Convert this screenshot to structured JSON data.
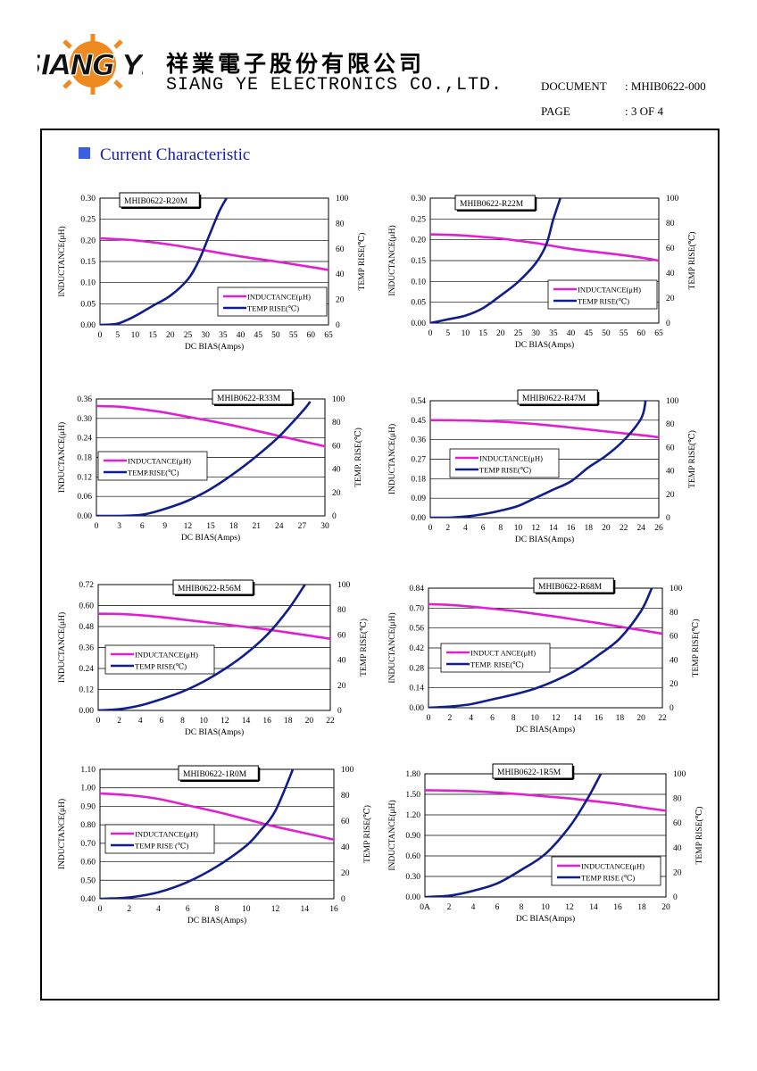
{
  "header": {
    "company_cn": "祥業電子股份有限公司",
    "company_en": "SIANG YE ELECTRONICS CO.,LTD.",
    "logo_text": "SIANG YE",
    "document_label": "DOCUMENT",
    "document_value": ": MHIB0622-000",
    "page_label": "PAGE",
    "page_value": ": 3 OF 4"
  },
  "section": {
    "title": "Current Characteristic"
  },
  "colors": {
    "inductance": "#e020d0",
    "temp": "#0f1e8c",
    "accent": "#3a5fe0"
  },
  "chart_data": [
    {
      "type": "line",
      "title": "MHIB0622-R20M",
      "xlabel": "DC BIAS(Amps)",
      "ylabel": "INDUCTANCE(μH)",
      "y2label": "TEMP RISE(℃)",
      "xlim": [
        0,
        65
      ],
      "ylim": [
        0,
        0.3
      ],
      "y2lim": [
        0,
        100
      ],
      "x_ticks": [
        "0",
        "5",
        "10",
        "15",
        "20",
        "25",
        "30",
        "35",
        "40",
        "45",
        "50",
        "55",
        "60",
        "65"
      ],
      "y_ticks": [
        "0.00",
        "0.05",
        "0.10",
        "0.15",
        "0.20",
        "0.25",
        "0.30"
      ],
      "y2_ticks": [
        "0",
        "20",
        "40",
        "60",
        "80",
        "100"
      ],
      "legend": [
        "INDUCTANCE(μH)",
        "TEMP RISE(℃)"
      ],
      "legend_position": "bottom-right",
      "series": [
        {
          "name": "INDUCTANCE(μH)",
          "axis": "left",
          "x": [
            0,
            10,
            20,
            30,
            40,
            50,
            60,
            65
          ],
          "y": [
            0.205,
            0.2,
            0.19,
            0.176,
            0.162,
            0.15,
            0.137,
            0.13
          ]
        },
        {
          "name": "TEMP RISE(℃)",
          "axis": "right",
          "x": [
            0,
            5,
            10,
            15,
            20,
            25,
            28,
            31,
            34,
            36
          ],
          "y": [
            0,
            1,
            7,
            15,
            23,
            36,
            50,
            70,
            90,
            100
          ]
        }
      ]
    },
    {
      "type": "line",
      "title": "MHIB0622-R22M",
      "xlabel": "DC BIAS(Amps)",
      "ylabel": "INDUCTANCE(μH)",
      "y2label": "TEMP RISE(℃)",
      "xlim": [
        0,
        65
      ],
      "ylim": [
        0,
        0.3
      ],
      "y2lim": [
        0,
        100
      ],
      "x_ticks": [
        "0",
        "5",
        "10",
        "15",
        "20",
        "25",
        "30",
        "35",
        "40",
        "45",
        "50",
        "55",
        "60",
        "65"
      ],
      "y_ticks": [
        "0.00",
        "0.05",
        "0.10",
        "0.15",
        "0.20",
        "0.25",
        "0.30"
      ],
      "y2_ticks": [
        "0",
        "20",
        "40",
        "60",
        "80",
        "100"
      ],
      "legend": [
        "INDUCTANCE(μH)",
        "TEMP RISE(℃)"
      ],
      "legend_position": "bottom-right",
      "series": [
        {
          "name": "INDUCTANCE(μH)",
          "axis": "left",
          "x": [
            0,
            5,
            10,
            20,
            30,
            40,
            50,
            60,
            65
          ],
          "y": [
            0.213,
            0.212,
            0.21,
            0.203,
            0.192,
            0.178,
            0.168,
            0.157,
            0.15
          ]
        },
        {
          "name": "TEMP RISE(℃)",
          "axis": "right",
          "x": [
            0,
            5,
            10,
            15,
            20,
            25,
            30,
            33,
            35,
            37
          ],
          "y": [
            0,
            3,
            6,
            12,
            22,
            33,
            48,
            63,
            83,
            100
          ]
        }
      ]
    },
    {
      "type": "line",
      "title": "MHIB0622-R33M",
      "xlabel": "DC BIAS(Amps)",
      "ylabel": "INDUCTANCE(μH)",
      "y2label": "TEMP. RISE(℃)",
      "xlim": [
        0,
        30
      ],
      "ylim": [
        0,
        0.36
      ],
      "y2lim": [
        0,
        100
      ],
      "x_ticks": [
        "0",
        "3",
        "6",
        "9",
        "12",
        "15",
        "18",
        "21",
        "24",
        "27",
        "30"
      ],
      "y_ticks": [
        "0.00",
        "0.06",
        "0.12",
        "0.18",
        "0.24",
        "0.30",
        "0.36"
      ],
      "y2_ticks": [
        "0",
        "20",
        "40",
        "60",
        "80",
        "100"
      ],
      "legend": [
        "INDUCTANCE(μH)",
        "TEMP.RISE(℃)"
      ],
      "legend_position": "middle-left",
      "series": [
        {
          "name": "INDUCTANCE(μH)",
          "axis": "left",
          "x": [
            0,
            3,
            6,
            9,
            12,
            15,
            18,
            21,
            24,
            27,
            30
          ],
          "y": [
            0.338,
            0.336,
            0.328,
            0.318,
            0.305,
            0.292,
            0.278,
            0.262,
            0.246,
            0.23,
            0.214
          ]
        },
        {
          "name": "TEMP.RISE(℃)",
          "axis": "right",
          "x": [
            0,
            3,
            6,
            9,
            12,
            15,
            18,
            21,
            24,
            27,
            28
          ],
          "y": [
            0,
            0,
            1,
            6,
            13,
            23,
            36,
            51,
            68,
            89,
            97
          ]
        }
      ]
    },
    {
      "type": "line",
      "title": "MHIB0622-R47M",
      "xlabel": "DC BIAS(Amps)",
      "ylabel": "INDUCTANCE(μH)",
      "y2label": "TEMP RISE(℃)",
      "xlim": [
        0,
        26
      ],
      "ylim": [
        0,
        0.54
      ],
      "y2lim": [
        0,
        100
      ],
      "x_ticks": [
        "0",
        "2",
        "4",
        "6",
        "8",
        "10",
        "12",
        "14",
        "16",
        "18",
        "20",
        "22",
        "24",
        "26"
      ],
      "y_ticks": [
        "0.00",
        "0.09",
        "0.18",
        "0.27",
        "0.36",
        "0.45",
        "0.54"
      ],
      "y2_ticks": [
        "0",
        "20",
        "40",
        "60",
        "80",
        "100"
      ],
      "legend": [
        "INDUCTANCE(μH)",
        "TEMP RISE(℃)"
      ],
      "legend_position": "middle-left",
      "series": [
        {
          "name": "INDUCTANCE(μH)",
          "axis": "left",
          "x": [
            0,
            4,
            8,
            12,
            16,
            20,
            24,
            26
          ],
          "y": [
            0.45,
            0.449,
            0.443,
            0.432,
            0.416,
            0.398,
            0.381,
            0.371
          ]
        },
        {
          "name": "TEMP RISE(℃)",
          "axis": "right",
          "x": [
            0,
            2,
            4,
            6,
            8,
            10,
            12,
            14,
            16,
            18,
            20,
            22,
            24,
            24.5
          ],
          "y": [
            0,
            0,
            1,
            3,
            6,
            10,
            17,
            24,
            31,
            43,
            53,
            66,
            85,
            100
          ]
        }
      ]
    },
    {
      "type": "line",
      "title": "MHIB0622-R56M",
      "xlabel": "DC BIAS(Amps)",
      "ylabel": "INDUCTANCE(μH)",
      "y2label": "TEMP RISE(℃)",
      "xlim": [
        0,
        22
      ],
      "ylim": [
        0,
        0.72
      ],
      "y2lim": [
        0,
        100
      ],
      "x_ticks": [
        "0",
        "2",
        "4",
        "6",
        "8",
        "10",
        "12",
        "14",
        "16",
        "18",
        "20",
        "22"
      ],
      "y_ticks": [
        "0.00",
        "0.12",
        "0.24",
        "0.36",
        "0.48",
        "0.60",
        "0.72"
      ],
      "y2_ticks": [
        "0",
        "20",
        "40",
        "60",
        "80",
        "100"
      ],
      "legend": [
        "INDUCTANCE(μH)",
        "TEMP RISE(℃)"
      ],
      "legend_position": "middle-left",
      "series": [
        {
          "name": "INDUCTANCE(μH)",
          "axis": "left",
          "x": [
            0,
            2,
            4,
            6,
            8,
            10,
            12,
            14,
            16,
            18,
            20,
            22
          ],
          "y": [
            0.553,
            0.552,
            0.545,
            0.534,
            0.52,
            0.506,
            0.492,
            0.478,
            0.463,
            0.446,
            0.428,
            0.41
          ]
        },
        {
          "name": "TEMP RISE(℃)",
          "axis": "right",
          "x": [
            0,
            2,
            4,
            6,
            8,
            10,
            12,
            14,
            16,
            18,
            19.6
          ],
          "y": [
            0,
            1,
            4,
            9,
            15,
            23,
            33,
            45,
            60,
            80,
            100
          ]
        }
      ]
    },
    {
      "type": "line",
      "title": "MHIB0622-R68M",
      "xlabel": "DC BIAS(Amps)",
      "ylabel": "INDUCTANCE(μH)",
      "y2label": "TEMP RISE(℃)",
      "xlim": [
        0,
        22
      ],
      "ylim": [
        0,
        0.84
      ],
      "y2lim": [
        0,
        100
      ],
      "x_ticks": [
        "0",
        "2",
        "4",
        "6",
        "8",
        "10",
        "12",
        "14",
        "16",
        "18",
        "20",
        "22"
      ],
      "y_ticks": [
        "0.00",
        "0.14",
        "0.28",
        "0.42",
        "0.56",
        "0.70",
        "0.84"
      ],
      "y2_ticks": [
        "0",
        "20",
        "40",
        "60",
        "80",
        "100"
      ],
      "legend": [
        "INDUCT ANCE(μH)",
        "TEMP. RISE(℃)"
      ],
      "legend_position": "middle-left",
      "series": [
        {
          "name": "INDUCT ANCE(μH)",
          "axis": "left",
          "x": [
            0,
            2,
            4,
            6,
            8,
            10,
            12,
            14,
            16,
            18,
            20,
            22
          ],
          "y": [
            0.728,
            0.722,
            0.71,
            0.696,
            0.68,
            0.66,
            0.64,
            0.617,
            0.594,
            0.569,
            0.545,
            0.52
          ]
        },
        {
          "name": "TEMP. RISE(℃)",
          "axis": "right",
          "x": [
            0,
            2,
            4,
            6,
            8,
            10,
            12,
            14,
            16,
            18,
            20,
            21
          ],
          "y": [
            0,
            1,
            3,
            7,
            11,
            16,
            23,
            32,
            44,
            58,
            81,
            100
          ]
        }
      ]
    },
    {
      "type": "line",
      "title": "MHIB0622-1R0M",
      "xlabel": "DC BIAS(Amps)",
      "ylabel": "INDUCTANCE(μH)",
      "y2label": "TEMP RISE(℃)",
      "xlim": [
        0,
        16
      ],
      "ylim": [
        0.4,
        1.1
      ],
      "y2lim": [
        0,
        100
      ],
      "x_ticks": [
        "0",
        "2",
        "4",
        "6",
        "8",
        "10",
        "12",
        "14",
        "16"
      ],
      "y_ticks": [
        "0.40",
        "0.50",
        "0.60",
        "0.70",
        "0.80",
        "0.90",
        "1.00",
        "1.10"
      ],
      "y2_ticks": [
        "0",
        "20",
        "40",
        "60",
        "80",
        "100"
      ],
      "legend": [
        "INDUCTANCE(μH)",
        "TEMP RISE (℃)"
      ],
      "legend_position": "middle-left",
      "series": [
        {
          "name": "INDUCTANCE(μH)",
          "axis": "left",
          "x": [
            0,
            2,
            4,
            6,
            8,
            10,
            12,
            14,
            16
          ],
          "y": [
            0.97,
            0.96,
            0.94,
            0.905,
            0.87,
            0.83,
            0.79,
            0.755,
            0.72
          ]
        },
        {
          "name": "TEMP RISE (℃)",
          "axis": "right",
          "x": [
            0,
            2,
            4,
            6,
            8,
            10,
            11,
            12,
            13.2
          ],
          "y": [
            0,
            1,
            5,
            13,
            25,
            41,
            53,
            68,
            100
          ]
        }
      ]
    },
    {
      "type": "line",
      "title": "MHIB0622-1R5M",
      "xlabel": "DC BIAS(Amps)",
      "ylabel": "INDUCTANCE(μH)",
      "y2label": "TEMP RISE(℃)",
      "xlim": [
        0,
        20
      ],
      "ylim": [
        0,
        1.8
      ],
      "y2lim": [
        0,
        100
      ],
      "x_ticks": [
        "0A",
        "2",
        "4",
        "6",
        "8",
        "10",
        "12",
        "14",
        "16",
        "18",
        "20"
      ],
      "y_ticks": [
        "0.00",
        "0.30",
        "0.60",
        "0.90",
        "1.20",
        "1.50",
        "1.80"
      ],
      "y2_ticks": [
        "0",
        "20",
        "40",
        "60",
        "80",
        "100"
      ],
      "legend": [
        "INDUCTANCE(μH)",
        "TEMP RISE (℃)"
      ],
      "legend_position": "bottom-right",
      "series": [
        {
          "name": "INDUCTANCE(μH)",
          "axis": "left",
          "x": [
            0,
            2,
            4,
            6,
            8,
            10,
            12,
            14,
            16,
            18,
            20
          ],
          "y": [
            1.56,
            1.555,
            1.545,
            1.525,
            1.5,
            1.47,
            1.44,
            1.4,
            1.36,
            1.31,
            1.26
          ]
        },
        {
          "name": "TEMP RISE (℃)",
          "axis": "right",
          "x": [
            0,
            2,
            4,
            6,
            8,
            10,
            12,
            13.5,
            14.6
          ],
          "y": [
            0,
            1,
            5,
            11,
            22,
            35,
            57,
            80,
            100
          ]
        }
      ]
    }
  ]
}
